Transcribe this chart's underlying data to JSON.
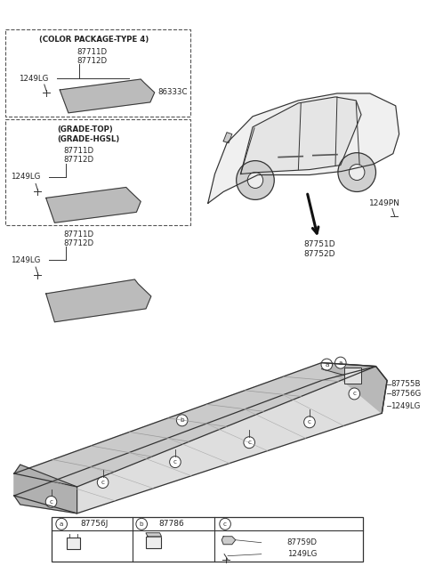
{
  "bg_color": "#ffffff",
  "line_color": "#333333",
  "parts": {
    "color_pkg_title": "(COLOR PACKAGE-TYPE 4)",
    "grade_top1": "(GRADE-TOP)",
    "grade_top2": "(GRADE-HGSL)",
    "p87711D": "87711D",
    "p87712D": "87712D",
    "p1249LG": "1249LG",
    "p86333C": "86333C",
    "p87751D": "87751D",
    "p87752D": "87752D",
    "p1249PN": "1249PN",
    "p87755B": "87755B",
    "p87756G": "87756G",
    "p87756J": "87756J",
    "p87786": "87786",
    "p87759D": "87759D"
  },
  "font_size": 6.5,
  "font_size_sm": 5.2
}
